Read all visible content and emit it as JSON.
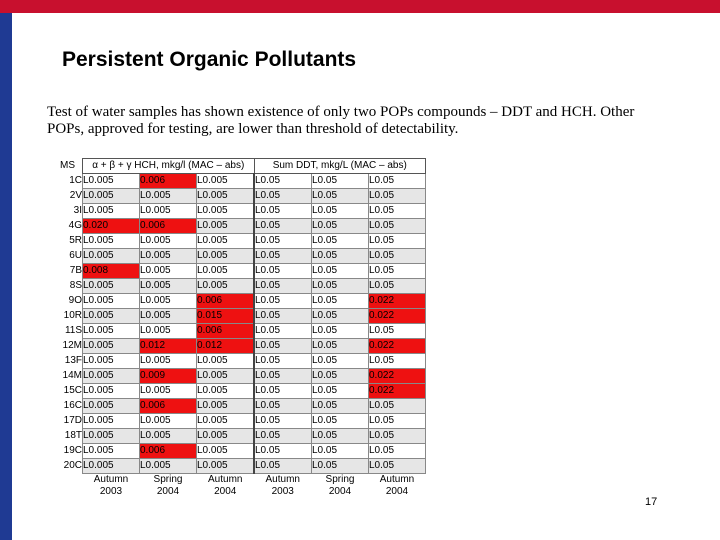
{
  "slide": {
    "title": "Persistent Organic Pollutants",
    "intro": "Test of water samples has shown existence of only two POPs compounds – DDT and HCH. Other POPs, approved for testing, are lower than threshold of detectability.",
    "page_number": "17",
    "colors": {
      "top_bar": "#c8102e",
      "left_bar": "#1f3a93",
      "highlight": "#ee1111"
    }
  },
  "table": {
    "ms_header": "MS",
    "hch_header": "α + β + γ HCH, mkg/l (MAC – abs)",
    "ddt_header": "Sum DDT, mkg/L (MAC – abs)",
    "rows": [
      {
        "ms": "1C",
        "vals": [
          "L0.005",
          "0.006",
          "L0.005",
          "L0.05",
          "L0.05",
          "L0.05"
        ],
        "red": [
          1
        ]
      },
      {
        "ms": "2V",
        "vals": [
          "L0.005",
          "L0.005",
          "L0.005",
          "L0.05",
          "L0.05",
          "L0.05"
        ],
        "red": []
      },
      {
        "ms": "3I",
        "vals": [
          "L0.005",
          "L0.005",
          "L0.005",
          "L0.05",
          "L0.05",
          "L0.05"
        ],
        "red": []
      },
      {
        "ms": "4G",
        "vals": [
          "0.020",
          "0.006",
          "L0.005",
          "L0.05",
          "L0.05",
          "L0.05"
        ],
        "red": [
          0,
          1
        ]
      },
      {
        "ms": "5R",
        "vals": [
          "L0.005",
          "L0.005",
          "L0.005",
          "L0.05",
          "L0.05",
          "L0.05"
        ],
        "red": []
      },
      {
        "ms": "6U",
        "vals": [
          "L0.005",
          "L0.005",
          "L0.005",
          "L0.05",
          "L0.05",
          "L0.05"
        ],
        "red": []
      },
      {
        "ms": "7B",
        "vals": [
          "0.008",
          "L0.005",
          "L0.005",
          "L0.05",
          "L0.05",
          "L0.05"
        ],
        "red": [
          0
        ]
      },
      {
        "ms": "8S",
        "vals": [
          "L0.005",
          "L0.005",
          "L0.005",
          "L0.05",
          "L0.05",
          "L0.05"
        ],
        "red": []
      },
      {
        "ms": "9O",
        "vals": [
          "L0.005",
          "L0.005",
          "0.006",
          "L0.05",
          "L0.05",
          "0.022"
        ],
        "red": [
          2,
          5
        ]
      },
      {
        "ms": "10R",
        "vals": [
          "L0.005",
          "L0.005",
          "0.015",
          "L0.05",
          "L0.05",
          "0.022"
        ],
        "red": [
          2,
          5
        ]
      },
      {
        "ms": "11S",
        "vals": [
          "L0.005",
          "L0.005",
          "0.006",
          "L0.05",
          "L0.05",
          "L0.05"
        ],
        "red": [
          2
        ]
      },
      {
        "ms": "12M",
        "vals": [
          "L0.005",
          "0.012",
          "0.012",
          "L0.05",
          "L0.05",
          "0.022"
        ],
        "red": [
          1,
          2,
          5
        ]
      },
      {
        "ms": "13F",
        "vals": [
          "L0.005",
          "L0.005",
          "L0.005",
          "L0.05",
          "L0.05",
          "L0.05"
        ],
        "red": []
      },
      {
        "ms": "14M",
        "vals": [
          "L0.005",
          "0.009",
          "L0.005",
          "L0.05",
          "L0.05",
          "0.022"
        ],
        "red": [
          1,
          5
        ]
      },
      {
        "ms": "15C",
        "vals": [
          "L0.005",
          "L0.005",
          "L0.005",
          "L0.05",
          "L0.05",
          "0.022"
        ],
        "red": [
          5
        ]
      },
      {
        "ms": "16C",
        "vals": [
          "L0.005",
          "0.006",
          "L0.005",
          "L0.05",
          "L0.05",
          "L0.05"
        ],
        "red": [
          1
        ]
      },
      {
        "ms": "17D",
        "vals": [
          "L0.005",
          "L0.005",
          "L0.005",
          "L0.05",
          "L0.05",
          "L0.05"
        ],
        "red": []
      },
      {
        "ms": "18T",
        "vals": [
          "L0.005",
          "L0.005",
          "L0.005",
          "L0.05",
          "L0.05",
          "L0.05"
        ],
        "red": []
      },
      {
        "ms": "19C",
        "vals": [
          "L0.005",
          "0.006",
          "L0.005",
          "L0.05",
          "L0.05",
          "L0.05"
        ],
        "red": [
          1
        ]
      },
      {
        "ms": "20C",
        "vals": [
          "L0.005",
          "L0.005",
          "L0.005",
          "L0.05",
          "L0.05",
          "L0.05"
        ],
        "red": []
      }
    ],
    "seasons": [
      "Autumn 2003",
      "Spring 2004",
      "Autumn 2004",
      "Autumn 2003",
      "Spring 2004",
      "Autumn 2004"
    ]
  }
}
